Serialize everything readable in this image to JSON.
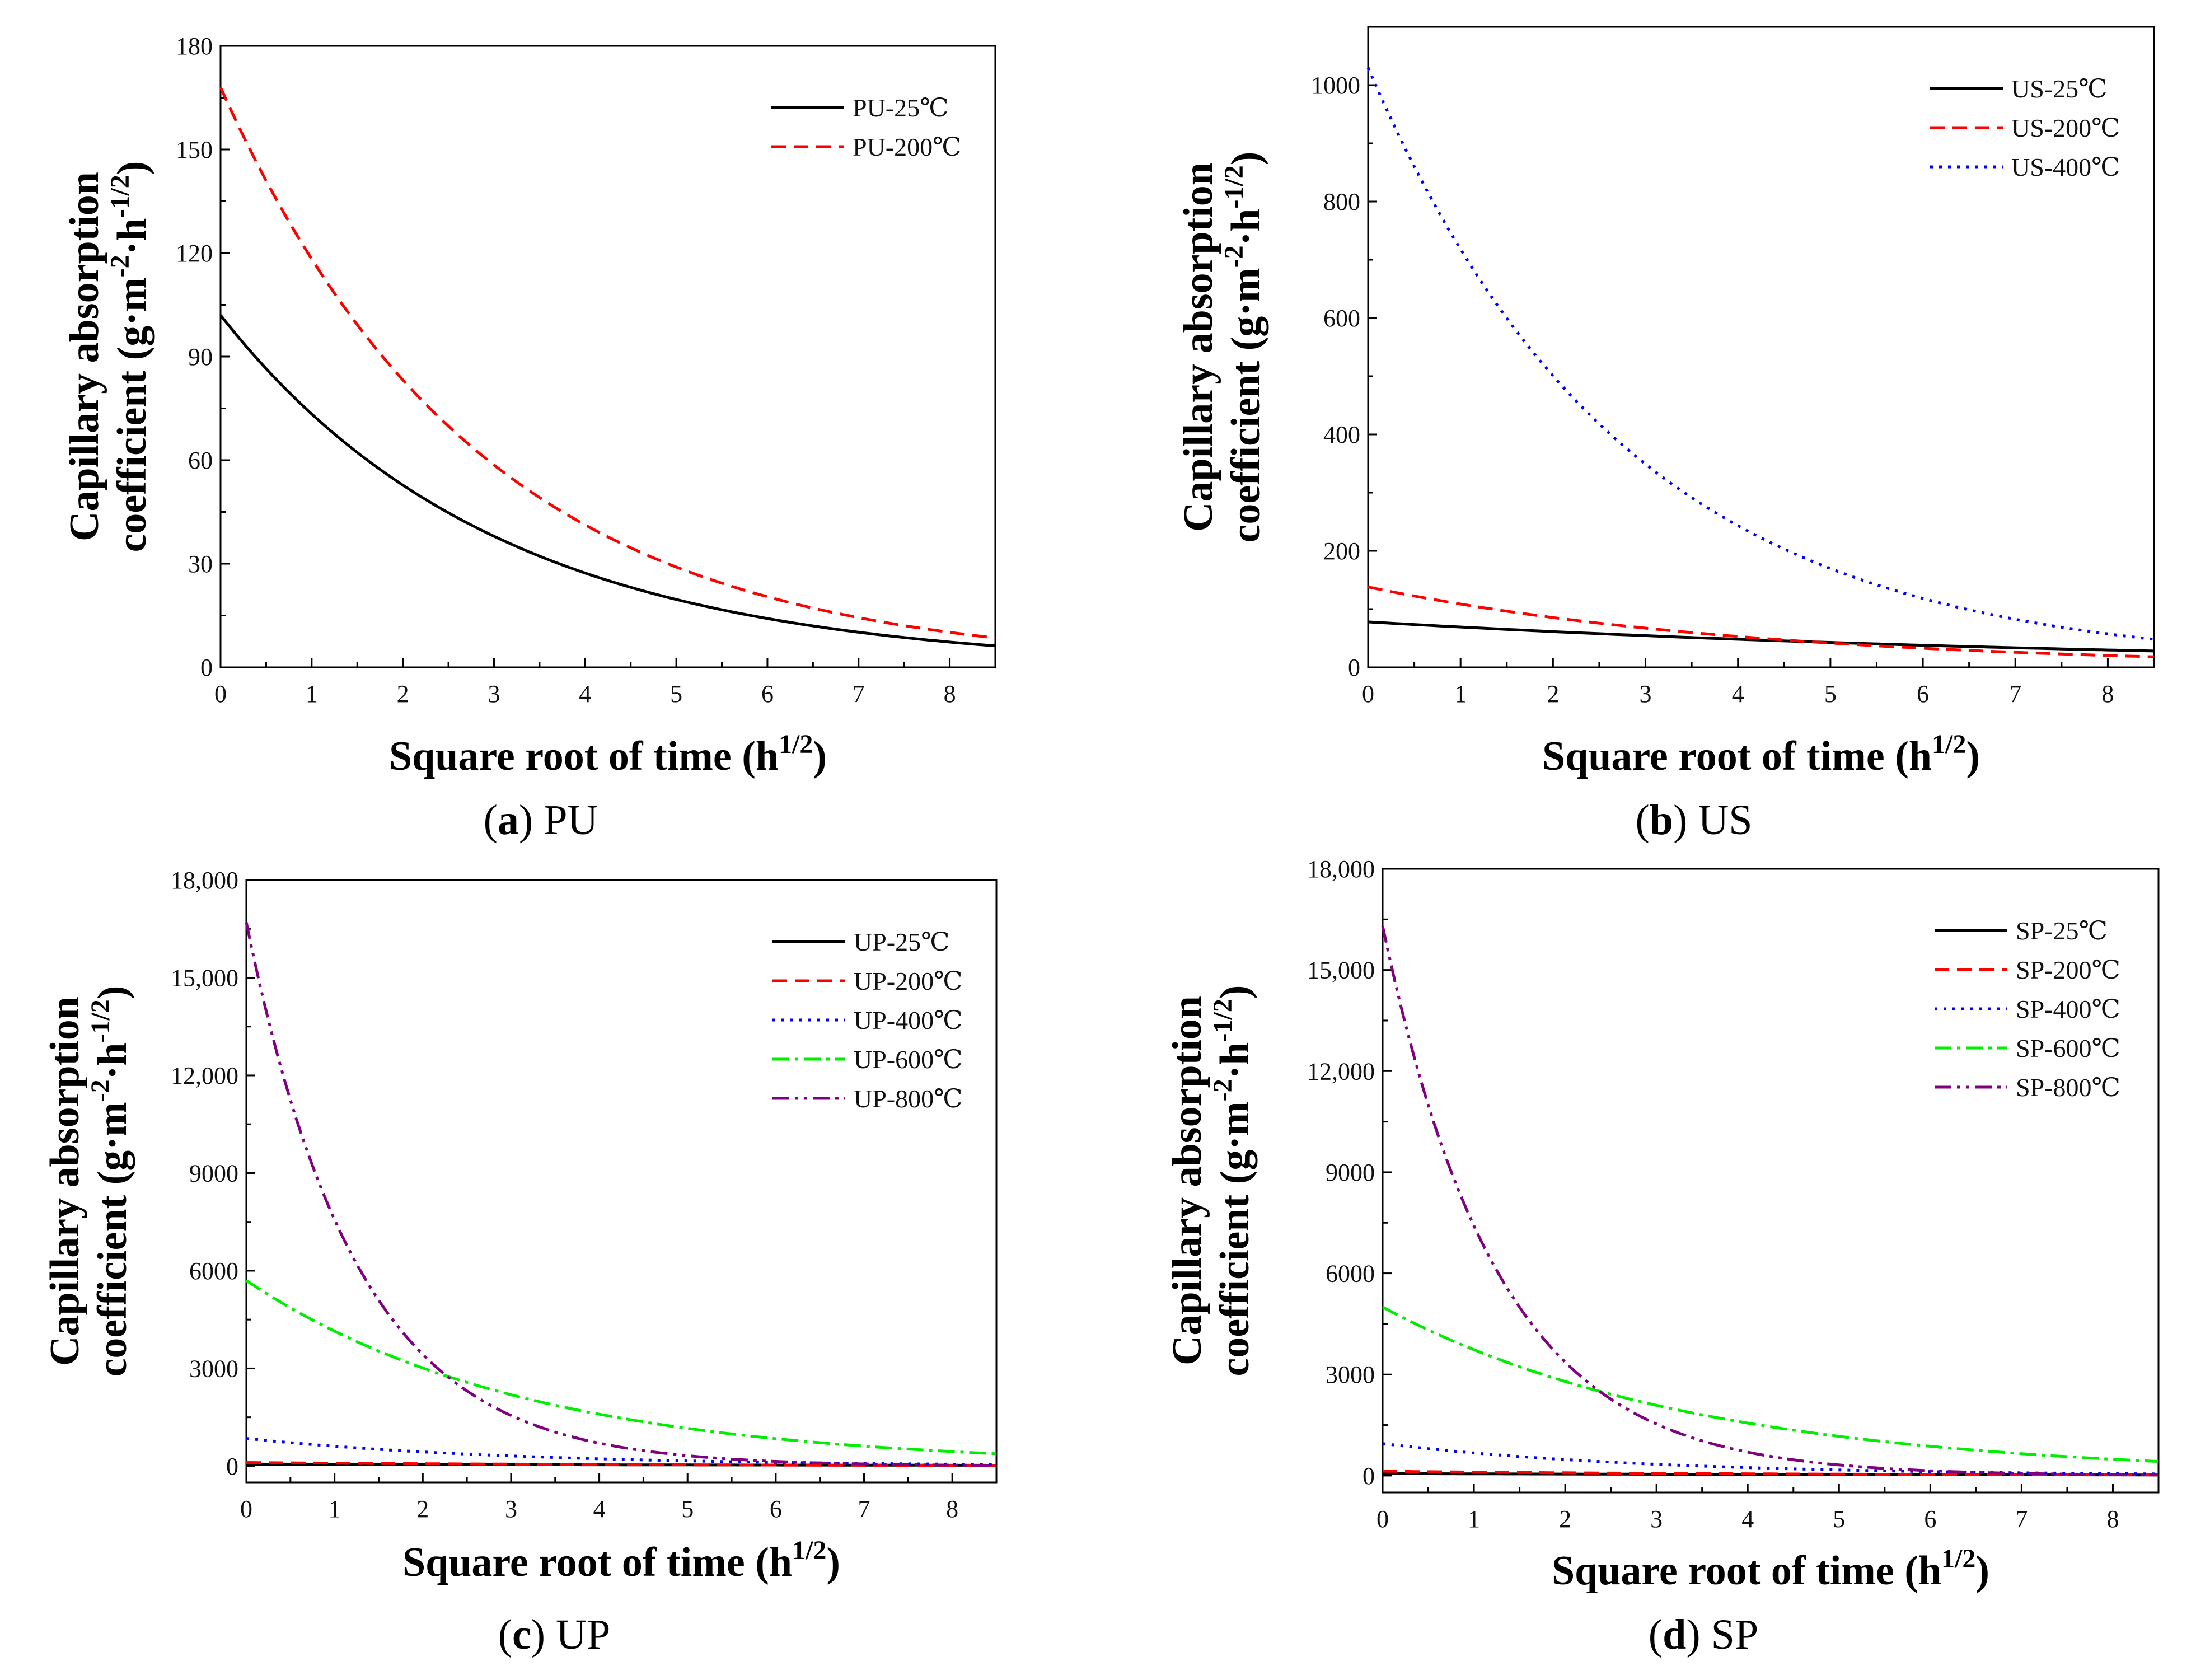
{
  "figure": {
    "background": "#ffffff"
  },
  "chart_data": [
    {
      "type": "line",
      "panel": "a",
      "caption_letter": "a",
      "caption_name": "PU",
      "xlabel_main": "Square root of time (h",
      "xlabel_sup": "1/2",
      "xlabel_end": ")",
      "ylabel_line1": "Capillary absorption",
      "ylabel_line2_main": "coefficient (g·m",
      "ylabel_line2_sup1": "-2",
      "ylabel_line2_mid": "·h",
      "ylabel_line2_sup2": "-1/2",
      "ylabel_line2_end": ")",
      "xlim": [
        0,
        8.5
      ],
      "ylim": [
        0,
        180
      ],
      "xticks": [
        0,
        1,
        2,
        3,
        4,
        5,
        6,
        7,
        8
      ],
      "yticks": [
        0,
        30,
        60,
        90,
        120,
        150,
        180
      ],
      "ytick_labels": [
        "0",
        "30",
        "60",
        "90",
        "120",
        "150",
        "180"
      ],
      "legend_position": "top-right",
      "series": [
        {
          "name": "PU-25℃",
          "color": "#000000",
          "dash": "solid",
          "start": 102,
          "end": 6.2
        },
        {
          "name": "PU-200℃",
          "color": "#ff0000",
          "dash": "dashed",
          "start": 168,
          "end": 8.5
        }
      ]
    },
    {
      "type": "line",
      "panel": "b",
      "caption_letter": "b",
      "caption_name": "US",
      "xlabel_main": "Square root of time (h",
      "xlabel_sup": "1/2",
      "xlabel_end": ")",
      "ylabel_line1": "Capillary absorption",
      "ylabel_line2_main": "coefficient (g·m",
      "ylabel_line2_sup1": "-2",
      "ylabel_line2_mid": "·h",
      "ylabel_line2_sup2": "-1/2",
      "ylabel_line2_end": ")",
      "xlim": [
        0,
        8.5
      ],
      "ylim": [
        0,
        1100
      ],
      "xticks": [
        0,
        1,
        2,
        3,
        4,
        5,
        6,
        7,
        8
      ],
      "yticks": [
        0,
        200,
        400,
        600,
        800,
        1000
      ],
      "ytick_labels": [
        "0",
        "200",
        "400",
        "600",
        "800",
        "1000"
      ],
      "legend_position": "top-right",
      "series": [
        {
          "name": "US-25℃",
          "color": "#000000",
          "dash": "solid",
          "start": 78,
          "end": 28
        },
        {
          "name": "US-200℃",
          "color": "#ff0000",
          "dash": "dashed",
          "start": 138,
          "end": 18
        },
        {
          "name": "US-400℃",
          "color": "#0000ff",
          "dash": "dotted",
          "start": 1030,
          "end": 48
        }
      ]
    },
    {
      "type": "line",
      "panel": "c",
      "caption_letter": "c",
      "caption_name": "UP",
      "xlabel_main": "Square root of time (h",
      "xlabel_sup": "1/2",
      "xlabel_end": ")",
      "ylabel_line1": "Capillary absorption",
      "ylabel_line2_main": "coefficient (g·m",
      "ylabel_line2_sup1": "-2",
      "ylabel_line2_mid": "·h",
      "ylabel_line2_sup2": "-1/2",
      "ylabel_line2_end": ")",
      "xlim": [
        0,
        8.5
      ],
      "ylim": [
        -500,
        18000
      ],
      "xticks": [
        0,
        1,
        2,
        3,
        4,
        5,
        6,
        7,
        8
      ],
      "yticks": [
        0,
        3000,
        6000,
        9000,
        12000,
        15000,
        18000
      ],
      "ytick_labels": [
        "0",
        "3000",
        "6000",
        "9000",
        "12,000",
        "15,000",
        "18,000"
      ],
      "legend_position": "top-right",
      "series": [
        {
          "name": "UP-25℃",
          "color": "#000000",
          "dash": "solid",
          "start": 60,
          "end": 25
        },
        {
          "name": "UP-200℃",
          "color": "#ff0000",
          "dash": "dashed",
          "start": 110,
          "end": 20
        },
        {
          "name": "UP-400℃",
          "color": "#0000ff",
          "dash": "dotted",
          "start": 850,
          "end": 50
        },
        {
          "name": "UP-600℃",
          "color": "#00ee00",
          "dash": "dashdot",
          "start": 5700,
          "end": 380
        },
        {
          "name": "UP-800℃",
          "color": "#800080",
          "dash": "dashdotdot",
          "start": 16700,
          "end": 20
        }
      ]
    },
    {
      "type": "line",
      "panel": "d",
      "caption_letter": "d",
      "caption_name": "SP",
      "xlabel_main": "Square root of time (h",
      "xlabel_sup": "1/2",
      "xlabel_end": ")",
      "ylabel_line1": "Capillary absorption",
      "ylabel_line2_main": "coefficient (g·m",
      "ylabel_line2_sup1": "-2",
      "ylabel_line2_mid": "·h",
      "ylabel_line2_sup2": "-1/2",
      "ylabel_line2_end": ")",
      "xlim": [
        0,
        8.5
      ],
      "ylim": [
        -500,
        18000
      ],
      "xticks": [
        0,
        1,
        2,
        3,
        4,
        5,
        6,
        7,
        8
      ],
      "yticks": [
        0,
        3000,
        6000,
        9000,
        12000,
        15000,
        18000
      ],
      "ytick_labels": [
        "0",
        "3000",
        "6000",
        "9000",
        "12,000",
        "15,000",
        "18,000"
      ],
      "legend_position": "top-right",
      "series": [
        {
          "name": "SP-25℃",
          "color": "#000000",
          "dash": "solid",
          "start": 60,
          "end": 20
        },
        {
          "name": "SP-200℃",
          "color": "#ff0000",
          "dash": "dashed",
          "start": 130,
          "end": 20
        },
        {
          "name": "SP-400℃",
          "color": "#0000ff",
          "dash": "dotted",
          "start": 950,
          "end": 50
        },
        {
          "name": "SP-600℃",
          "color": "#00ee00",
          "dash": "dashdot",
          "start": 5000,
          "end": 420
        },
        {
          "name": "SP-800℃",
          "color": "#800080",
          "dash": "dashdotdot",
          "start": 16300,
          "end": 20
        }
      ]
    }
  ]
}
